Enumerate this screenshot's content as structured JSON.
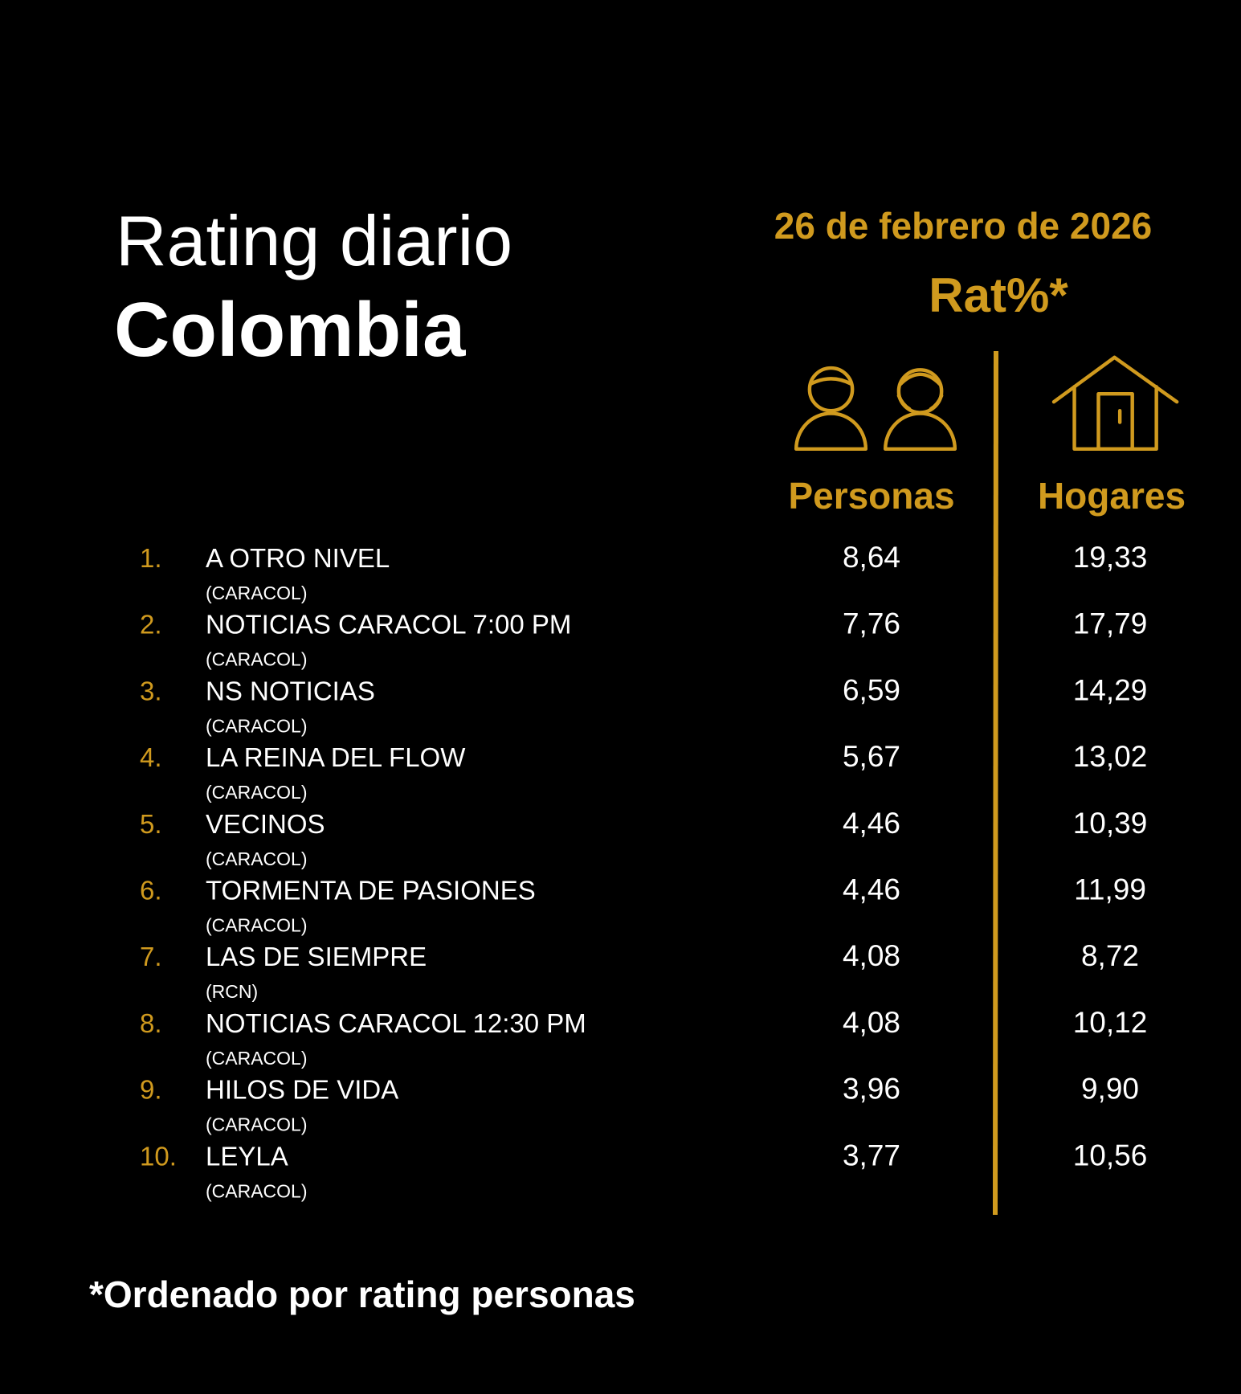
{
  "header": {
    "title_line1": "Rating diario",
    "title_line2": "Colombia",
    "date": "26 de febrero de 2026",
    "metric": "Rat%*"
  },
  "columns": {
    "personas": "Personas",
    "hogares": "Hogares"
  },
  "table": {
    "rows": [
      {
        "rank": "1.",
        "program": "A OTRO NIVEL",
        "channel": "(CARACOL)",
        "personas": "8,64",
        "hogares": "19,33"
      },
      {
        "rank": "2.",
        "program": "NOTICIAS CARACOL 7:00 PM",
        "channel": "(CARACOL)",
        "personas": "7,76",
        "hogares": "17,79"
      },
      {
        "rank": "3.",
        "program": "NS NOTICIAS",
        "channel": "(CARACOL)",
        "personas": "6,59",
        "hogares": "14,29"
      },
      {
        "rank": "4.",
        "program": "LA REINA DEL FLOW",
        "channel": "(CARACOL)",
        "personas": "5,67",
        "hogares": "13,02"
      },
      {
        "rank": "5.",
        "program": "VECINOS",
        "channel": "(CARACOL)",
        "personas": "4,46",
        "hogares": "10,39"
      },
      {
        "rank": "6.",
        "program": "TORMENTA DE PASIONES",
        "channel": "(CARACOL)",
        "personas": "4,46",
        "hogares": "11,99"
      },
      {
        "rank": "7.",
        "program": "LAS DE SIEMPRE",
        "channel": "(RCN)",
        "personas": "4,08",
        "hogares": "8,72"
      },
      {
        "rank": "8.",
        "program": "NOTICIAS CARACOL 12:30 PM",
        "channel": "(CARACOL)",
        "personas": "4,08",
        "hogares": "10,12"
      },
      {
        "rank": "9.",
        "program": "HILOS DE VIDA",
        "channel": "(CARACOL)",
        "personas": "3,96",
        "hogares": "9,90"
      },
      {
        "rank": "10.",
        "program": "LEYLA",
        "channel": "(CARACOL)",
        "personas": "3,77",
        "hogares": "10,56"
      }
    ]
  },
  "footnote": "*Ordenado por rating personas"
}
